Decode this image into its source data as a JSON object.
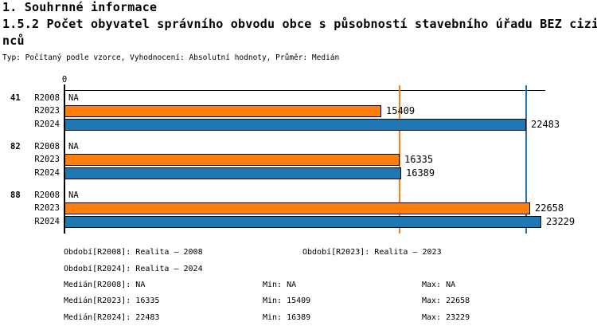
{
  "header": {
    "section_title": "1. Souhrnné informace",
    "chart_title": "1.5.2 Počet obyvatel správního obvodu obce s působností stavebního úřadu BEZ cizinců",
    "meta_line": "Typ: Počítaný podle vzorce, Vyhodnocení: Absolutní hodnoty, Průměr: Medián"
  },
  "chart_data": {
    "type": "bar",
    "orientation": "horizontal",
    "title": "1.5.2 Počet obyvatel správního obvodu obce s působností stavebního úřadu BEZ cizinců",
    "x_axis": {
      "zero_label": "0",
      "xlim": [
        0,
        23400
      ],
      "grid": false
    },
    "legend_position": "none",
    "categories": [
      "41",
      "82",
      "88"
    ],
    "series_names": [
      "R2008",
      "R2023",
      "R2024"
    ],
    "groups": [
      {
        "category": "41",
        "bars": [
          {
            "series": "R2008",
            "value": null,
            "value_label": "NA",
            "color": null
          },
          {
            "series": "R2023",
            "value": 15409,
            "value_label": "15409",
            "color": "#ff7f0e"
          },
          {
            "series": "R2024",
            "value": 22483,
            "value_label": "22483",
            "color": "#1f77b4"
          }
        ]
      },
      {
        "category": "82",
        "bars": [
          {
            "series": "R2008",
            "value": null,
            "value_label": "NA",
            "color": null
          },
          {
            "series": "R2023",
            "value": 16335,
            "value_label": "16335",
            "color": "#ff7f0e"
          },
          {
            "series": "R2024",
            "value": 16389,
            "value_label": "16389",
            "color": "#1f77b4"
          }
        ]
      },
      {
        "category": "88",
        "bars": [
          {
            "series": "R2008",
            "value": null,
            "value_label": "NA",
            "color": null
          },
          {
            "series": "R2023",
            "value": 22658,
            "value_label": "22658",
            "color": "#ff7f0e"
          },
          {
            "series": "R2024",
            "value": 23229,
            "value_label": "23229",
            "color": "#1f77b4"
          }
        ]
      }
    ],
    "guidelines": [
      {
        "series": "R2023",
        "stat": "Medián",
        "value": 16335,
        "color": "#ff7f0e"
      },
      {
        "series": "R2024",
        "stat": "Medián",
        "value": 22483,
        "color": "#1f77b4"
      }
    ]
  },
  "footer": {
    "periods": [
      {
        "col1": "Období[R2008]: Realita – 2008",
        "col2": "Období[R2023]: Realita – 2023"
      },
      {
        "col1": "Období[R2024]: Realita – 2024",
        "col2": ""
      }
    ],
    "stats": [
      {
        "median": "Medián[R2008]: NA",
        "min": "Min: NA",
        "max": "Max: NA"
      },
      {
        "median": "Medián[R2023]: 16335",
        "min": "Min: 15409",
        "max": "Max: 22658"
      },
      {
        "median": "Medián[R2024]: 22483",
        "min": "Min: 16389",
        "max": "Max: 23229"
      }
    ]
  }
}
